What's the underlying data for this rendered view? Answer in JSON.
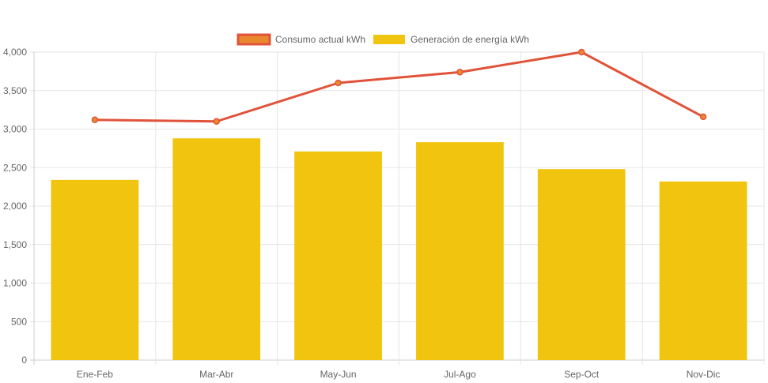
{
  "chart_data": {
    "type": "bar",
    "categories": [
      "Ene-Feb",
      "Mar-Abr",
      "May-Jun",
      "Jul-Ago",
      "Sep-Oct",
      "Nov-Dic"
    ],
    "series": [
      {
        "name": "Consumo actual kWh",
        "type": "line",
        "values": [
          3120,
          3100,
          3600,
          3740,
          4000,
          3160
        ],
        "color": "#e0533a",
        "fill": "#e8892f"
      },
      {
        "name": "Generación de energía kWh",
        "type": "bar",
        "values": [
          2340,
          2880,
          2710,
          2830,
          2480,
          2320
        ],
        "color": "#f1c40f"
      }
    ],
    "yticks": [
      "0",
      "500",
      "1,000",
      "1,500",
      "2,000",
      "2,500",
      "3,000",
      "3,500",
      "4,000"
    ],
    "ylim": [
      0,
      4000
    ],
    "title": "",
    "xlabel": "",
    "ylabel": "",
    "grid": true,
    "legend": "top-center",
    "gridColor": "#e5e5e5",
    "axisColor": "#cccccc"
  }
}
